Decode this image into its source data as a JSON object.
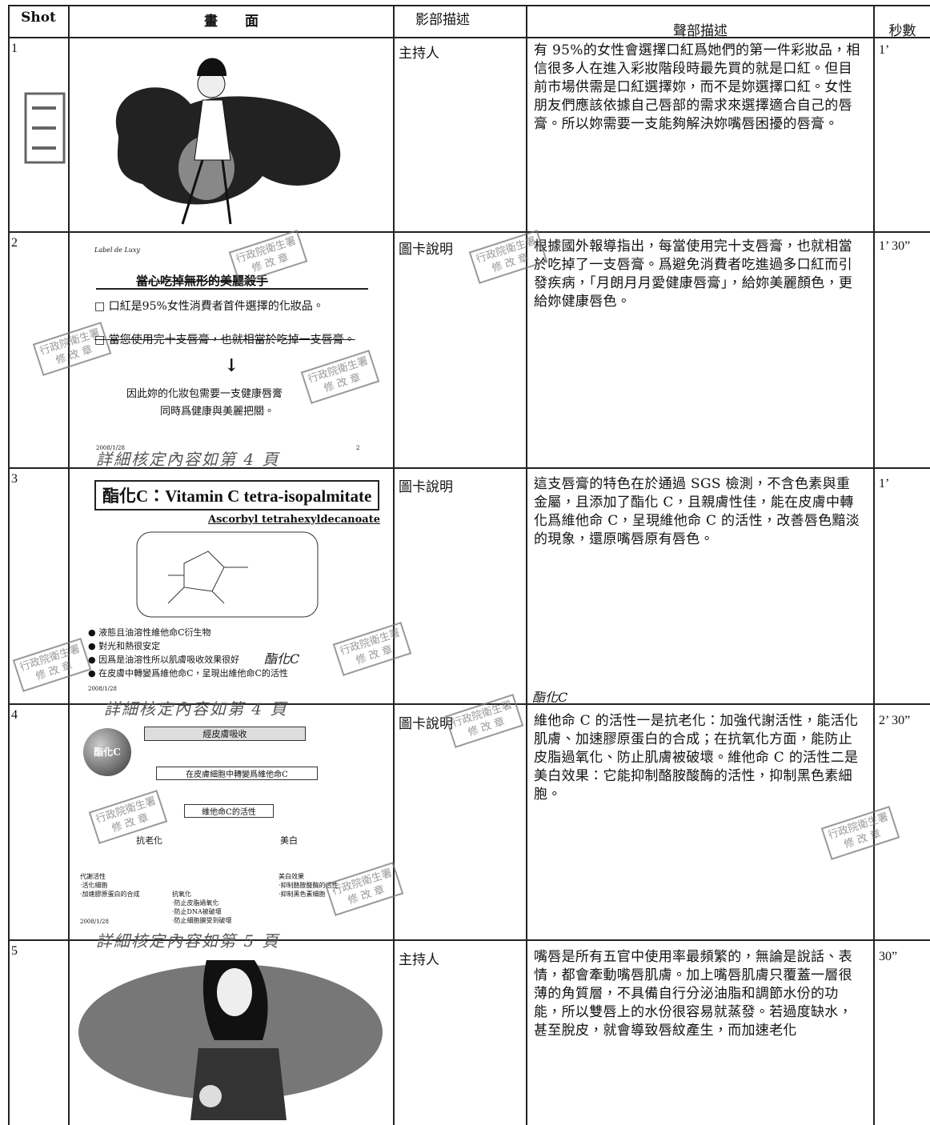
{
  "table": {
    "headers": [
      "Shot",
      "畫　　面",
      "影部描述",
      "聲部描述",
      "秒數"
    ],
    "rows": [
      {
        "shot": "1",
        "video": "主持人",
        "audio": "有 95%的女性會選擇口紅爲她們的第一件彩妝品，相信很多人在進入彩妝階段時最先買的就是口紅。但目前市場供需是口紅選擇妳，而不是妳選擇口紅。女性朋友們應該依據自己唇部的需求來選擇適合自己的唇膏。所以妳需要一支能夠解決妳嘴唇困擾的唇膏。",
        "seconds": "1’"
      },
      {
        "shot": "2",
        "video": "圖卡說明",
        "audio": "根據國外報導指出，每當使用完十支唇膏，也就相當於吃掉了一支唇膏。爲避免消費者吃進過多口紅而引發疾病，「月朗月月愛健康唇膏」，給妳美麗顏色，更給妳健康唇色。",
        "seconds": "1’ 30”"
      },
      {
        "shot": "3",
        "video": "圖卡說明",
        "audio": "這支唇膏的特色在於通過 SGS 檢測，不含色素與重金屬，且添加了酯化 C，且親膚性佳，能在皮膚中轉化爲維他命 C，呈現維他命 C 的活性，改善唇色黯淡的現象，還原嘴唇原有唇色。",
        "seconds": "1’"
      },
      {
        "shot": "4",
        "video": "圖卡說明",
        "audio": "維他命 C 的活性一是抗老化：加強代謝活性，能活化肌膚、加速膠原蛋白的合成；在抗氧化方面，能防止皮脂過氧化、防止肌膚被破壞。維他命 C 的活性二是美白效果：它能抑制酪胺酸酶的活性，抑制黑色素細胞。",
        "seconds": "2’ 30”"
      },
      {
        "shot": "5",
        "video": "主持人",
        "audio": "嘴唇是所有五官中使用率最頻繁的，無論是說話、表情，都會牽動嘴唇肌膚。加上嘴唇肌膚只覆蓋一層很薄的角質層，不具備自行分泌油脂和調節水份的功能，所以雙唇上的水份很容易就蒸發。若過度缺水，甚至脫皮，就會導致唇紋產生，而加速老化",
        "seconds": "30”"
      }
    ]
  },
  "stamp": {
    "line1": "行政院衛生署",
    "line2": "修 改 章"
  },
  "slide2": {
    "logo": "Label de Luxy",
    "title": "當心吃掉無形的美麗殺手",
    "bullets": [
      "□ 口紅是95%女性消費者首件選擇的化妝品。",
      "□ 當您使用完十支唇膏，也就相當於吃掉一支唇膏。"
    ],
    "arrow": "↓",
    "conclusion": [
      "因此妳的化妝包需要一支健康唇膏",
      "同時爲健康與美麗把關。"
    ],
    "date": "2008/1/28",
    "page": "2",
    "note": "詳細核定內容如第 4 頁"
  },
  "slide3": {
    "title": "酯化C：Vitamin C tetra-isopalmitate",
    "subtitle": "Ascorbyl tetrahexyldecanoate",
    "bullets": [
      "● 液態且油溶性維他命C衍生物",
      "● 對光和熱很安定",
      "● 因爲是油溶性所以肌膚吸收效果很好",
      "● 在皮膚中轉變爲維他命C，呈現出維他命C的活性"
    ],
    "date": "2008/1/28",
    "handnote": "酯化C",
    "note": "詳細核定內容如第 4 頁"
  },
  "slide4": {
    "badge": "酯化C",
    "steps": [
      "經皮膚吸收",
      "在皮膚細胞中轉變爲維他命C",
      "維他命C的活性"
    ],
    "branches": [
      "抗老化",
      "美白"
    ],
    "left": [
      "代謝活性",
      "·活化細胞",
      "·加速膠原蛋白的合成"
    ],
    "middle": [
      "抗氧化",
      "·防止皮脂過氧化",
      "·防止DNA被破壞",
      "·防止細胞膜受到破壞"
    ],
    "right": [
      "美白效果",
      "·抑制酪胺酸酶的活性",
      "·抑制黑色素細胞"
    ],
    "date": "2008/1/28",
    "note": "詳細核定內容如第 5 頁"
  }
}
